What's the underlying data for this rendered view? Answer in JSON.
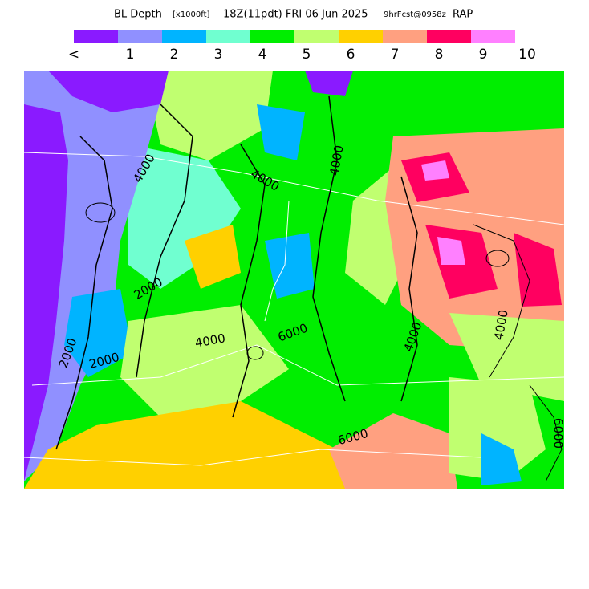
{
  "header": {
    "title": "BL Depth",
    "units": "[x1000ft]",
    "valid": "18Z(11pdt) FRI 06 Jun 2025",
    "forecast": "9hrFcst@0958z",
    "model": "RAP"
  },
  "colorbar": {
    "colors": [
      "#8a1aff",
      "#9090ff",
      "#00b4ff",
      "#70ffd0",
      "#00ee00",
      "#c0ff70",
      "#ffd000",
      "#ffa080",
      "#ff0060",
      "#ff80ff"
    ],
    "labels": [
      "<",
      "1",
      "2",
      "3",
      "4",
      "5",
      "6",
      "7",
      "8",
      "9",
      "10"
    ]
  },
  "map": {
    "contour_labels": [
      "4000",
      "4000",
      "2000",
      "2000",
      "4000",
      "4000",
      "6000",
      "6000",
      "4000",
      "6000",
      "4000",
      "2000"
    ]
  }
}
